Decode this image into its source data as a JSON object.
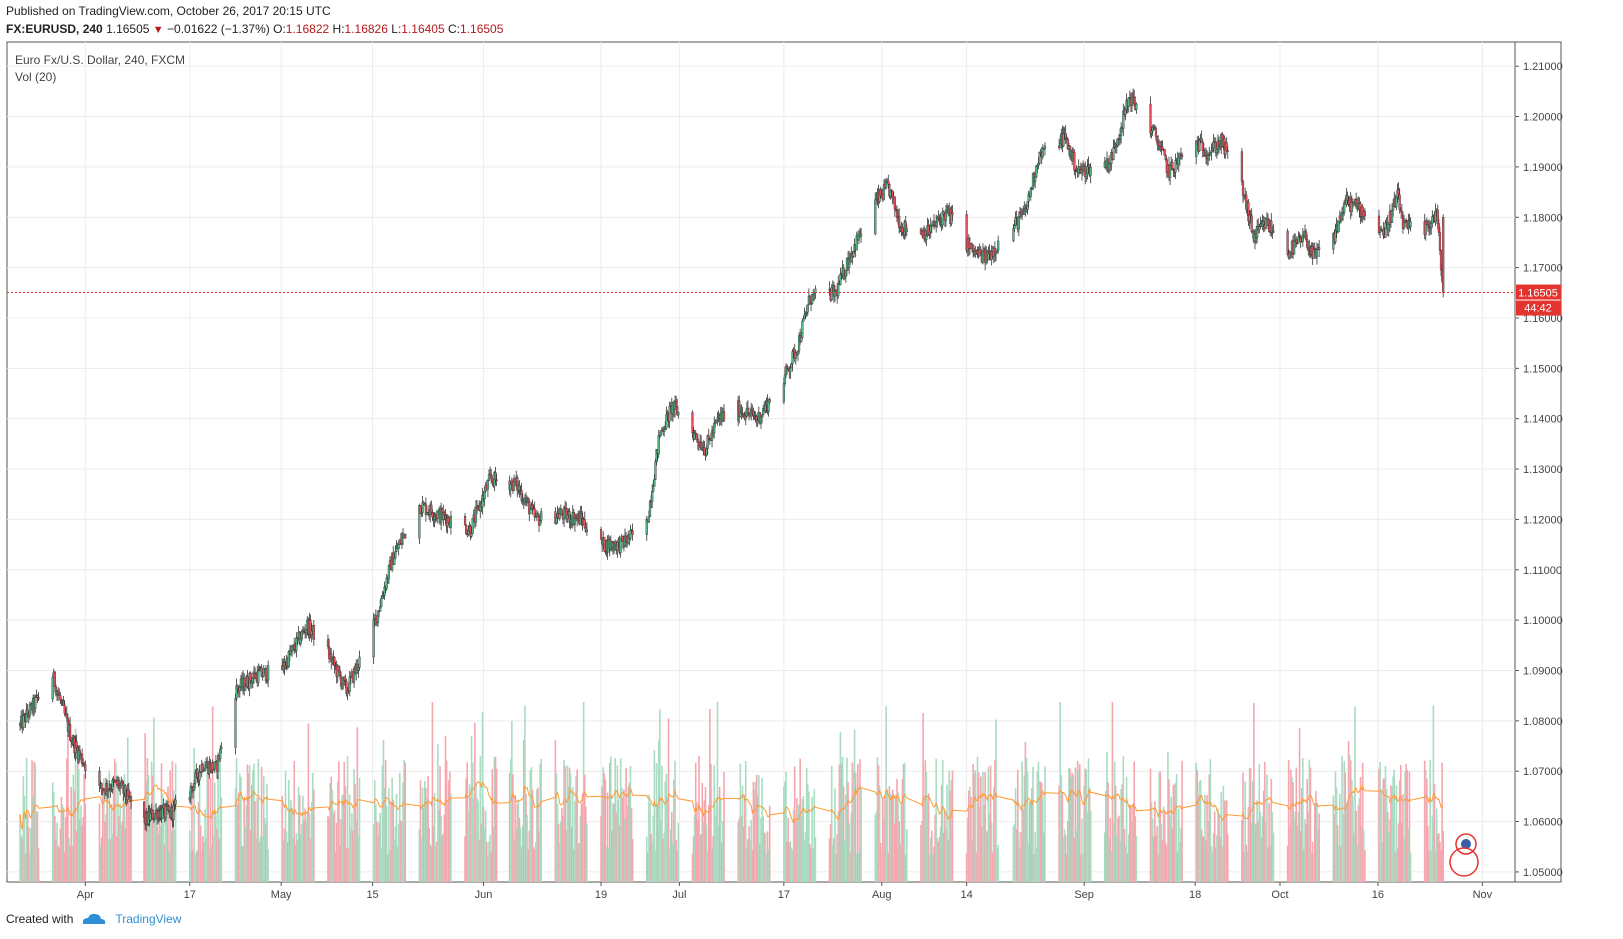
{
  "header": {
    "published": "Published on TradingView.com, October 26, 2017 20:15 UTC",
    "symbol": "FX:EURUSD",
    "interval": "240",
    "last": "1.16505",
    "change": "−0.01622 (−1.37%)",
    "o_label": "O:",
    "o_value": "1.16822",
    "h_label": "H:",
    "h_value": "1.16826",
    "l_label": "L:",
    "l_value": "1.16405",
    "c_label": "C:",
    "c_value": "1.16505"
  },
  "footer": {
    "created_with": "Created with",
    "brand": "TradingView"
  },
  "chart_data": {
    "type": "candlestick",
    "title": "Euro Fx/U.S. Dollar, 240, FXCM",
    "indicator": "Vol (20)",
    "y_ticks": [
      "1.21000",
      "1.20000",
      "1.19000",
      "1.18000",
      "1.17000",
      "1.16000",
      "1.15000",
      "1.14000",
      "1.13000",
      "1.12000",
      "1.11000",
      "1.10000",
      "1.09000",
      "1.08000",
      "1.07000",
      "1.06000",
      "1.05000"
    ],
    "ylim": [
      1.048,
      1.2148
    ],
    "x_ticks": [
      "Apr",
      "17",
      "May",
      "15",
      "Jun",
      "19",
      "Jul",
      "17",
      "Aug",
      "14",
      "Sep",
      "18",
      "Oct",
      "16",
      "Nov"
    ],
    "last_price_label": "1.16505",
    "countdown": "44:42",
    "last_price": 1.16505,
    "colors": {
      "up": "#53b987",
      "down": "#eb4d5c",
      "vol_up": "#a9dcc3",
      "vol_down": "#f5a6ae",
      "ma": "#ff9933",
      "price_line": "#e3342f"
    },
    "price_path": [
      [
        "Mar 22",
        1.079
      ],
      [
        "Mar 27",
        1.089
      ],
      [
        "Mar 30",
        1.076
      ],
      [
        "Apr 3",
        1.0665
      ],
      [
        "Apr 6",
        1.0675
      ],
      [
        "Apr 10",
        1.06
      ],
      [
        "Apr 12",
        1.062
      ],
      [
        "Apr 14",
        1.0615
      ],
      [
        "Apr 17",
        1.066
      ],
      [
        "Apr 19",
        1.0715
      ],
      [
        "Apr 21",
        1.0705
      ],
      [
        "Apr 24",
        1.086
      ],
      [
        "Apr 27",
        1.089
      ],
      [
        "May 1",
        1.09
      ],
      [
        "May 5",
        1.099
      ],
      [
        "May 8",
        1.094
      ],
      [
        "May 11",
        1.086
      ],
      [
        "May 15",
        1.098
      ],
      [
        "May 18",
        1.112
      ],
      [
        "May 22",
        1.123
      ],
      [
        "May 25",
        1.121
      ],
      [
        "May 30",
        1.118
      ],
      [
        "Jun 2",
        1.128
      ],
      [
        "Jun 6",
        1.127
      ],
      [
        "Jun 9",
        1.12
      ],
      [
        "Jun 13",
        1.121
      ],
      [
        "Jun 16",
        1.12
      ],
      [
        "Jun 19",
        1.115
      ],
      [
        "Jun 22",
        1.115
      ],
      [
        "Jun 26",
        1.119
      ],
      [
        "Jun 28",
        1.137
      ],
      [
        "Jun 30",
        1.1425
      ],
      [
        "Jul 5",
        1.134
      ],
      [
        "Jul 7",
        1.14
      ],
      [
        "Jul 10",
        1.142
      ],
      [
        "Jul 13",
        1.14
      ],
      [
        "Jul 17",
        1.148
      ],
      [
        "Jul 19",
        1.154
      ],
      [
        "Jul 21",
        1.164
      ],
      [
        "Jul 25",
        1.165
      ],
      [
        "Jul 27",
        1.172
      ],
      [
        "Jul 31",
        1.183
      ],
      [
        "Aug 2",
        1.186
      ],
      [
        "Aug 4",
        1.178
      ],
      [
        "Aug 8",
        1.177
      ],
      [
        "Aug 11",
        1.181
      ],
      [
        "Aug 15",
        1.173
      ],
      [
        "Aug 17",
        1.172
      ],
      [
        "Aug 21",
        1.178
      ],
      [
        "Aug 23",
        1.181
      ],
      [
        "Aug 25",
        1.192
      ],
      [
        "Aug 29",
        1.196
      ],
      [
        "Aug 31",
        1.189
      ],
      [
        "Sep 5",
        1.191
      ],
      [
        "Sep 8",
        1.204
      ],
      [
        "Sep 12",
        1.196
      ],
      [
        "Sep 14",
        1.189
      ],
      [
        "Sep 18",
        1.195
      ],
      [
        "Sep 20",
        1.193
      ],
      [
        "Sep 22",
        1.195
      ],
      [
        "Sep 25",
        1.187
      ],
      [
        "Sep 27",
        1.176
      ],
      [
        "Sep 29",
        1.179
      ],
      [
        "Oct 2",
        1.173
      ],
      [
        "Oct 5",
        1.176
      ],
      [
        "Oct 6",
        1.172
      ],
      [
        "Oct 9",
        1.175
      ],
      [
        "Oct 11",
        1.183
      ],
      [
        "Oct 13",
        1.182
      ],
      [
        "Oct 17",
        1.177
      ],
      [
        "Oct 19",
        1.184
      ],
      [
        "Oct 20",
        1.178
      ],
      [
        "Oct 23",
        1.177
      ],
      [
        "Oct 25",
        1.181
      ],
      [
        "Oct 26",
        1.165
      ]
    ]
  }
}
